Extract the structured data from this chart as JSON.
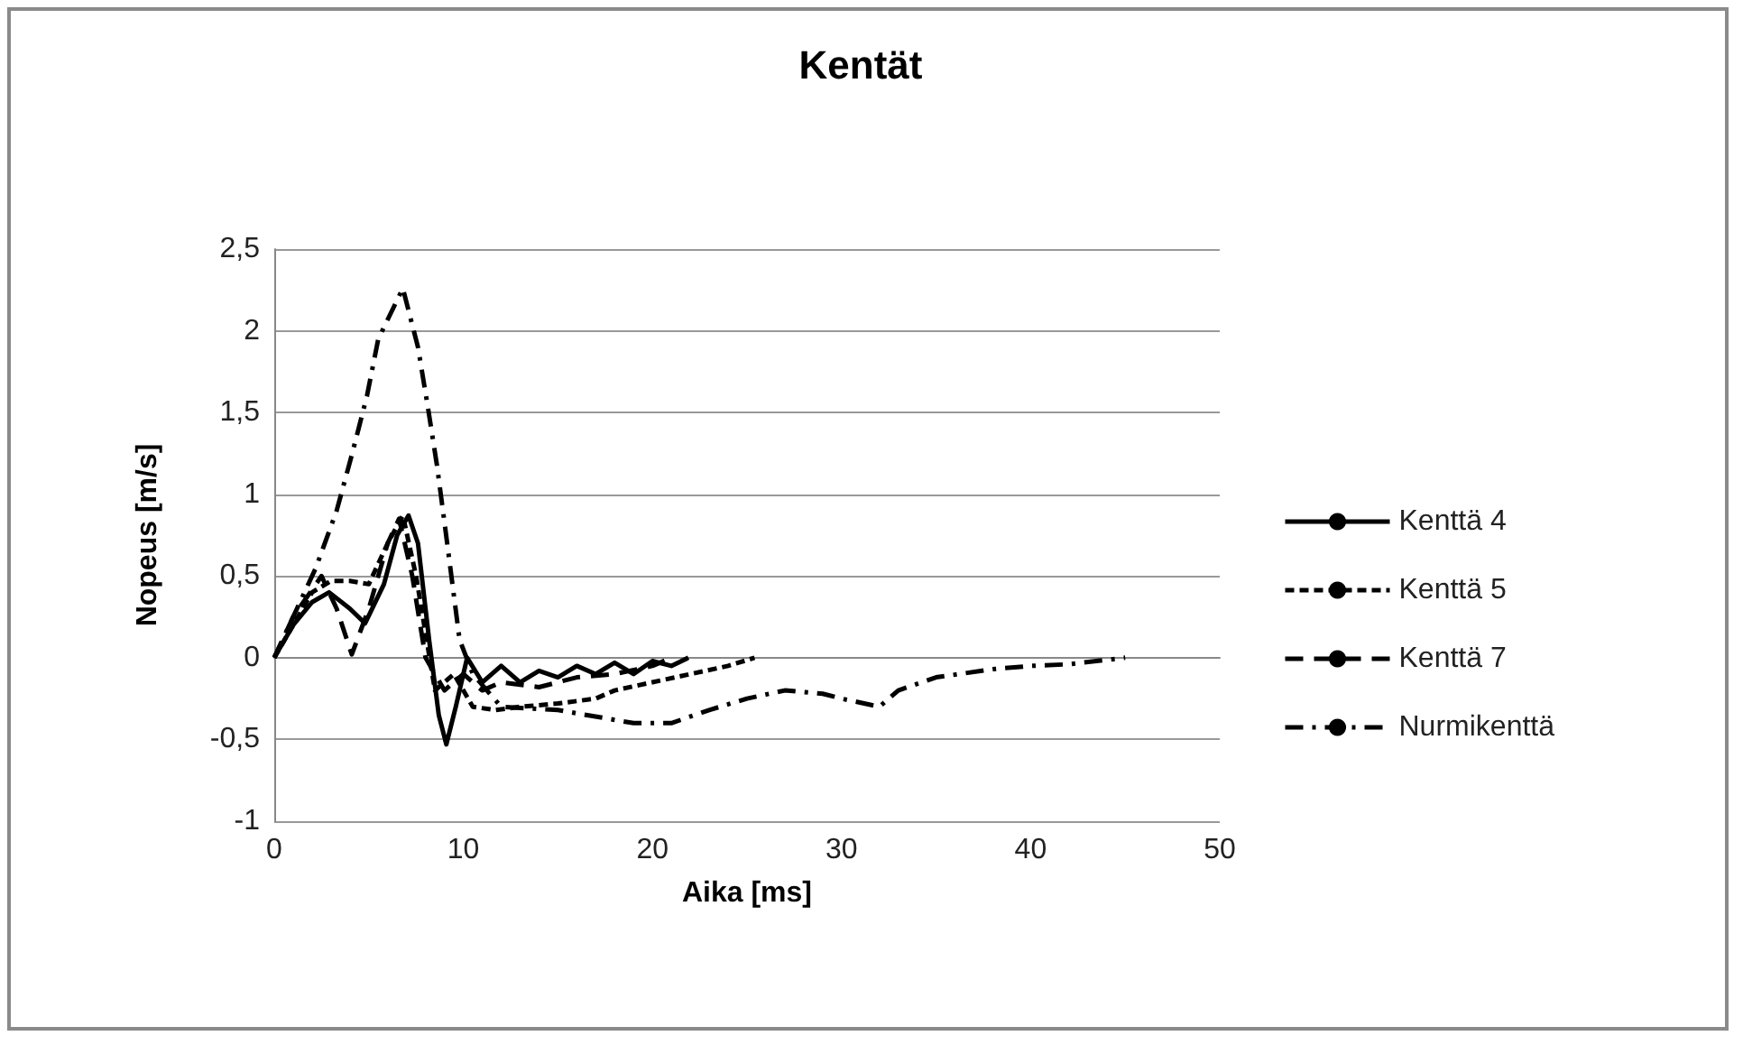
{
  "chart_data": {
    "type": "line",
    "title": "Kentät",
    "xlabel": "Aika [ms]",
    "ylabel": "Nopeus [m/s]",
    "xlim": [
      0,
      50
    ],
    "xticks": [
      0,
      10,
      20,
      30,
      40,
      50
    ],
    "ylim": [
      -1,
      2.5
    ],
    "yticks": [
      -1,
      {
        "value": -0.5,
        "label": "-0,5"
      },
      0,
      {
        "value": 0.5,
        "label": "0,5"
      },
      1,
      {
        "value": 1.5,
        "label": "1,5"
      },
      2,
      {
        "value": 2.5,
        "label": "2,5"
      }
    ],
    "grid": "y",
    "legend": "right",
    "marker": "none",
    "series": [
      {
        "name": "Kenttä 4",
        "color": "#000000",
        "line_style": "solid",
        "x": [
          0,
          1,
          2,
          2.9,
          4,
          4.8,
          5.8,
          6.5,
          7.1,
          7.6,
          8.2,
          8.7,
          9.1,
          9.6,
          10.2,
          11,
          12,
          13,
          14,
          15,
          16,
          17,
          18,
          19,
          20,
          21,
          21.9
        ],
        "values": [
          0,
          0.2,
          0.34,
          0.4,
          0.3,
          0.21,
          0.45,
          0.75,
          0.87,
          0.7,
          0.1,
          -0.35,
          -0.53,
          -0.3,
          0,
          -0.15,
          -0.05,
          -0.15,
          -0.08,
          -0.12,
          -0.05,
          -0.1,
          -0.03,
          -0.1,
          -0.02,
          -0.05,
          0
        ]
      },
      {
        "name": "Kenttä 5",
        "color": "#000000",
        "line_style": "dotted",
        "x": [
          0,
          1,
          2,
          3,
          4,
          5,
          6,
          6.8,
          7.5,
          8.5,
          9.5,
          10.5,
          11.7,
          13,
          15,
          17,
          18,
          20,
          22,
          24,
          25.4
        ],
        "values": [
          0,
          0.2,
          0.4,
          0.47,
          0.47,
          0.45,
          0.7,
          0.87,
          0.5,
          -0.2,
          -0.1,
          -0.3,
          -0.32,
          -0.3,
          -0.28,
          -0.25,
          -0.2,
          -0.15,
          -0.1,
          -0.05,
          0
        ]
      },
      {
        "name": "Kenttä 7",
        "color": "#000000",
        "line_style": "dashed",
        "x": [
          0,
          1,
          2.5,
          3.3,
          4.1,
          5,
          6,
          6.6,
          7.3,
          8,
          9,
          10,
          11,
          12,
          14,
          16,
          18,
          20,
          21
        ],
        "values": [
          0,
          0.25,
          0.5,
          0.3,
          0.02,
          0.3,
          0.7,
          0.85,
          0.5,
          0,
          -0.2,
          -0.1,
          -0.2,
          -0.15,
          -0.18,
          -0.12,
          -0.1,
          -0.05,
          0
        ]
      },
      {
        "name": "Nurmikenttä",
        "color": "#000000",
        "line_style": "dashdot",
        "x": [
          0,
          1,
          2.2,
          3.3,
          4.1,
          4.9,
          5.5,
          6.8,
          7.6,
          8.1,
          8.6,
          9,
          9.8,
          10.5,
          12,
          15,
          18,
          19,
          21,
          23,
          25,
          27,
          29,
          30,
          32,
          33,
          35,
          38,
          40,
          42,
          45
        ],
        "values": [
          0,
          0.25,
          0.55,
          0.9,
          1.24,
          1.6,
          1.95,
          2.26,
          1.9,
          1.55,
          1.18,
          0.83,
          0.11,
          -0.1,
          -0.3,
          -0.32,
          -0.38,
          -0.4,
          -0.4,
          -0.32,
          -0.25,
          -0.2,
          -0.22,
          -0.25,
          -0.3,
          -0.2,
          -0.12,
          -0.07,
          -0.05,
          -0.04,
          0
        ]
      }
    ]
  }
}
